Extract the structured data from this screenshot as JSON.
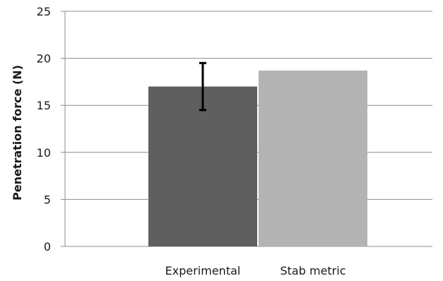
{
  "chart_data": {
    "type": "bar",
    "title": "",
    "xlabel": "",
    "ylabel": "Penetration force (N)",
    "categories": [
      "Experimental",
      "Stab metric"
    ],
    "values": [
      17.0,
      18.7
    ],
    "error": [
      {
        "low": 14.5,
        "high": 19.5
      },
      null
    ],
    "bar_colors": [
      "#5f5f5f",
      "#b3b3b3"
    ],
    "ylim": [
      0,
      25
    ],
    "yticks": [
      "0",
      "5",
      "10",
      "15",
      "20",
      "25"
    ],
    "grid": true,
    "legend": "none"
  }
}
